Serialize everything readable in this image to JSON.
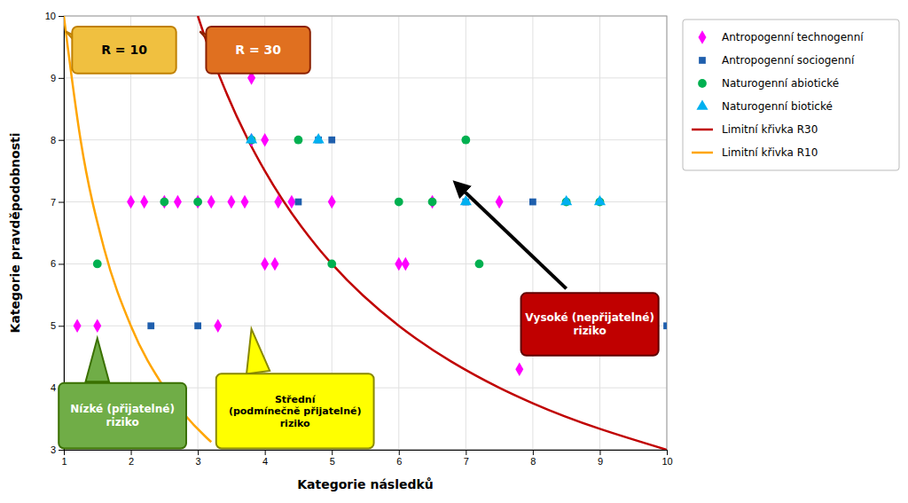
{
  "chart_data": {
    "type": "scatter",
    "title": "",
    "x_label": "Kategorie následků",
    "y_label": "Kategorie pravděpodobnosti",
    "xlim": [
      1,
      10
    ],
    "ylim": [
      3,
      10
    ],
    "xticks": [
      1,
      2,
      3,
      4,
      5,
      6,
      7,
      8,
      9,
      10
    ],
    "yticks": [
      3,
      4,
      5,
      6,
      7,
      8,
      9,
      10
    ],
    "grid": true,
    "legend": "right",
    "series": [
      {
        "name": "Antropogenní technogenní",
        "color": "#ff00ff",
        "marker": "diamond",
        "x": [
          1.2,
          1.5,
          2.0,
          2.2,
          2.5,
          2.7,
          3.0,
          3.2,
          3.5,
          3.7,
          3.8,
          4.0,
          4.0,
          4.15,
          4.2,
          4.4,
          3.3,
          5.0,
          6.0,
          6.1,
          6.5,
          7.5,
          3.8,
          7.8
        ],
        "values": [
          5,
          5,
          7,
          7,
          7,
          7,
          7,
          7,
          7,
          7,
          8,
          8,
          6,
          6,
          7,
          7,
          5,
          7,
          6,
          6,
          7,
          7,
          9,
          4.3
        ]
      },
      {
        "name": "Antropogenní sociogenní",
        "color": "#1f5fad",
        "marker": "square",
        "x": [
          2.3,
          3.0,
          4.5,
          4.8,
          5.0,
          7.0,
          8.0,
          10.0
        ],
        "values": [
          5,
          5,
          7,
          8,
          8,
          7,
          7,
          5
        ]
      },
      {
        "name": "Naturogenní abiotické",
        "color": "#00b050",
        "marker": "circle",
        "x": [
          1.5,
          2.5,
          3.0,
          3.8,
          4.5,
          5.0,
          6.0,
          6.5,
          7.0,
          7.2,
          8.5,
          9.0
        ],
        "values": [
          6,
          7,
          7,
          8,
          8,
          6,
          7,
          7,
          8,
          6,
          7,
          7
        ]
      },
      {
        "name": "Naturogenní biotické",
        "color": "#00b0f0",
        "marker": "triangle",
        "x": [
          3.8,
          4.8,
          7.0,
          8.5,
          9.0
        ],
        "values": [
          8,
          8,
          7,
          7,
          7
        ]
      },
      {
        "name": "Limitní křivka R30",
        "type": "line",
        "color": "#c00000",
        "line_style": "solid",
        "x": [
          3,
          3.125,
          3.2,
          3.75,
          4,
          4.8,
          5,
          6,
          6.25,
          7.5,
          8,
          10
        ],
        "values": [
          10,
          9.6,
          9.375,
          8,
          7.5,
          6.25,
          6,
          5,
          4.8,
          4,
          3.75,
          3
        ]
      },
      {
        "name": "Limitní křivka R10",
        "type": "line",
        "color": "#ffa500",
        "line_style": "solid",
        "x": [
          1,
          1.25,
          1.6,
          2,
          2.5,
          3.125,
          3.2
        ],
        "values": [
          10,
          8,
          6.25,
          5,
          4,
          3.2,
          3.125
        ]
      }
    ],
    "annotations": [
      "R = 10",
      "R = 30",
      "Nízké (přijatelné)\nriziko",
      "Střední\n(podmínečně přijatelné)\nriziko",
      "Vysoké (nepřijatelné)\nriziko"
    ]
  }
}
